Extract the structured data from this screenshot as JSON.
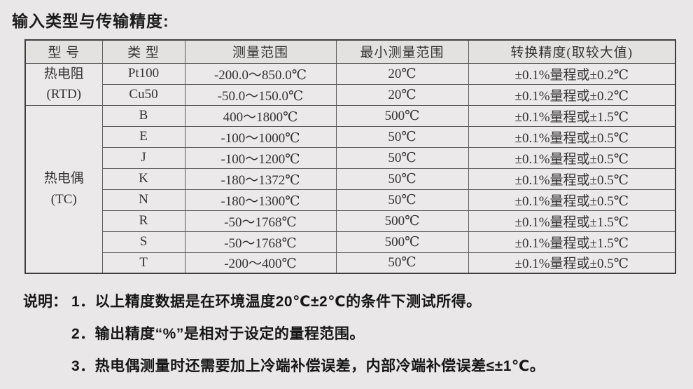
{
  "page": {
    "title": "输入类型与传输精度:",
    "bg_color": "#e9e7e7",
    "border_color": "#3f3f3f",
    "accent_text_color": "#1c1c1c"
  },
  "table": {
    "headers": [
      "型  号",
      "类  型",
      "测量范围",
      "最小测量范围",
      "转换精度(取较大值)"
    ],
    "groups": [
      {
        "model_lines": [
          "热电阻",
          "(RTD)"
        ],
        "rows": [
          {
            "type": "Pt100",
            "range": "-200.0～850.0℃",
            "min_range": "20℃",
            "accuracy": "±0.1%量程或±0.2℃"
          },
          {
            "type": "Cu50",
            "range": "-50.0～150.0℃",
            "min_range": "20℃",
            "accuracy": "±0.1%量程或±0.2℃"
          }
        ]
      },
      {
        "model_lines": [
          "热电偶",
          "(TC)"
        ],
        "rows": [
          {
            "type": "B",
            "range": "400～1800℃",
            "min_range": "500℃",
            "accuracy": "±0.1%量程或±1.5℃"
          },
          {
            "type": "E",
            "range": "-100～1000℃",
            "min_range": "50℃",
            "accuracy": "±0.1%量程或±0.5℃"
          },
          {
            "type": "J",
            "range": "-100～1200℃",
            "min_range": "50℃",
            "accuracy": "±0.1%量程或±0.5℃"
          },
          {
            "type": "K",
            "range": "-180～1372℃",
            "min_range": "50℃",
            "accuracy": "±0.1%量程或±0.5℃"
          },
          {
            "type": "N",
            "range": "-180～1300℃",
            "min_range": "50℃",
            "accuracy": "±0.1%量程或±0.5℃"
          },
          {
            "type": "R",
            "range": "-50～1768℃",
            "min_range": "500℃",
            "accuracy": "±0.1%量程或±1.5℃"
          },
          {
            "type": "S",
            "range": "-50～1768℃",
            "min_range": "500℃",
            "accuracy": "±0.1%量程或±1.5℃"
          },
          {
            "type": "T",
            "range": "-200～400℃",
            "min_range": "50℃",
            "accuracy": "±0.1%量程或±0.5℃"
          }
        ]
      }
    ]
  },
  "notes": {
    "label": "说明：",
    "items": [
      "1．以上精度数据是在环境温度20℃±2℃的条件下测试所得。",
      "2．输出精度“%”是相对于设定的量程范围。",
      "3．热电偶测量时还需要加上冷端补偿误差，内部冷端补偿误差≤±1℃。"
    ]
  }
}
